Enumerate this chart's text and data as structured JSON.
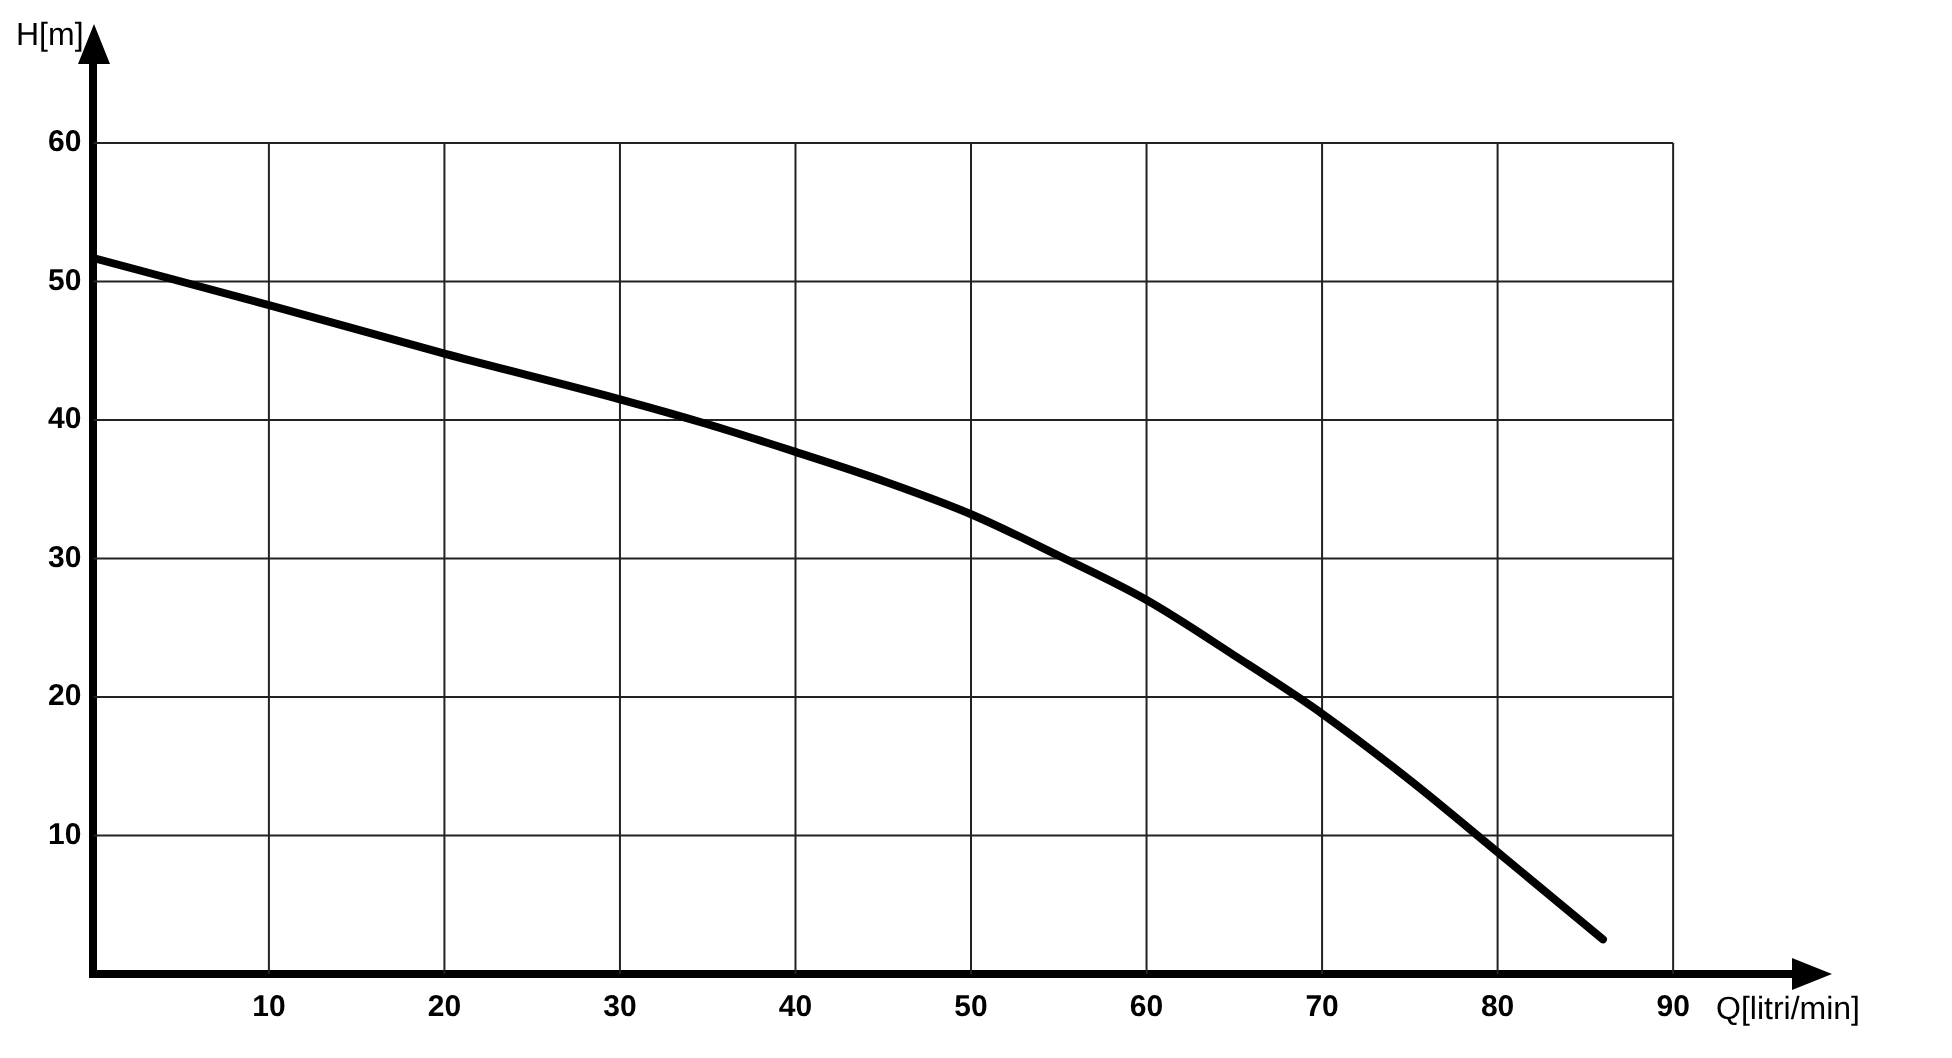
{
  "chart_data": {
    "type": "line",
    "xlabel": "Q[litri/min]",
    "ylabel": "H[m]",
    "x": [
      0,
      10,
      20,
      30,
      35,
      40,
      45,
      50,
      55,
      60,
      65,
      70,
      75,
      80,
      86
    ],
    "series": [
      {
        "color": "#000000",
        "values": [
          51.7,
          48.3,
          44.8,
          41.5,
          39.7,
          37.7,
          35.6,
          33.2,
          30.2,
          27,
          23,
          18.8,
          14,
          8.8,
          2.5
        ]
      }
    ],
    "xlim": [
      0,
      97
    ],
    "ylim": [
      0,
      66
    ],
    "xticks": [
      10,
      20,
      30,
      40,
      50,
      60,
      70,
      80,
      90
    ],
    "yticks": [
      10,
      20,
      30,
      40,
      50,
      60
    ],
    "grid": true,
    "legend": false,
    "marker": "none",
    "line_style": "solid"
  }
}
